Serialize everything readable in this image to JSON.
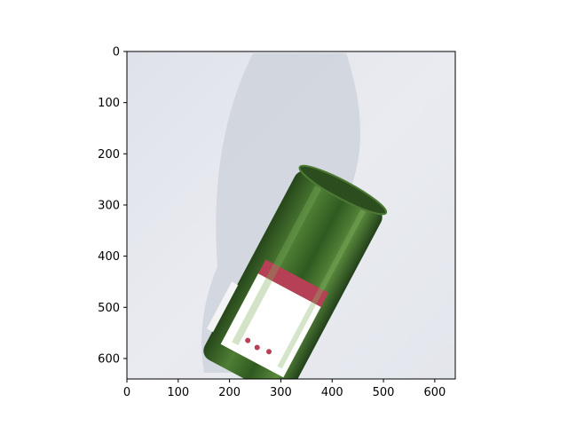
{
  "figure": {
    "subject": "green-wine-bottle-on-white-surface",
    "colors": {
      "background": "#ffffff",
      "axis": "#000000",
      "bottle_green": "#3f6a26",
      "label_red": "#b64055",
      "label_white": "#ffffff",
      "surface": "#e7e9ee"
    }
  },
  "axes": {
    "xlim": [
      0,
      640
    ],
    "ylim": [
      640,
      0
    ],
    "x_ticks": [
      0,
      100,
      200,
      300,
      400,
      500,
      600
    ],
    "y_ticks": [
      0,
      100,
      200,
      300,
      400,
      500,
      600
    ],
    "x_tick_labels": [
      "0",
      "100",
      "200",
      "300",
      "400",
      "500",
      "600"
    ],
    "y_tick_labels": [
      "0",
      "100",
      "200",
      "300",
      "400",
      "500",
      "600"
    ]
  }
}
